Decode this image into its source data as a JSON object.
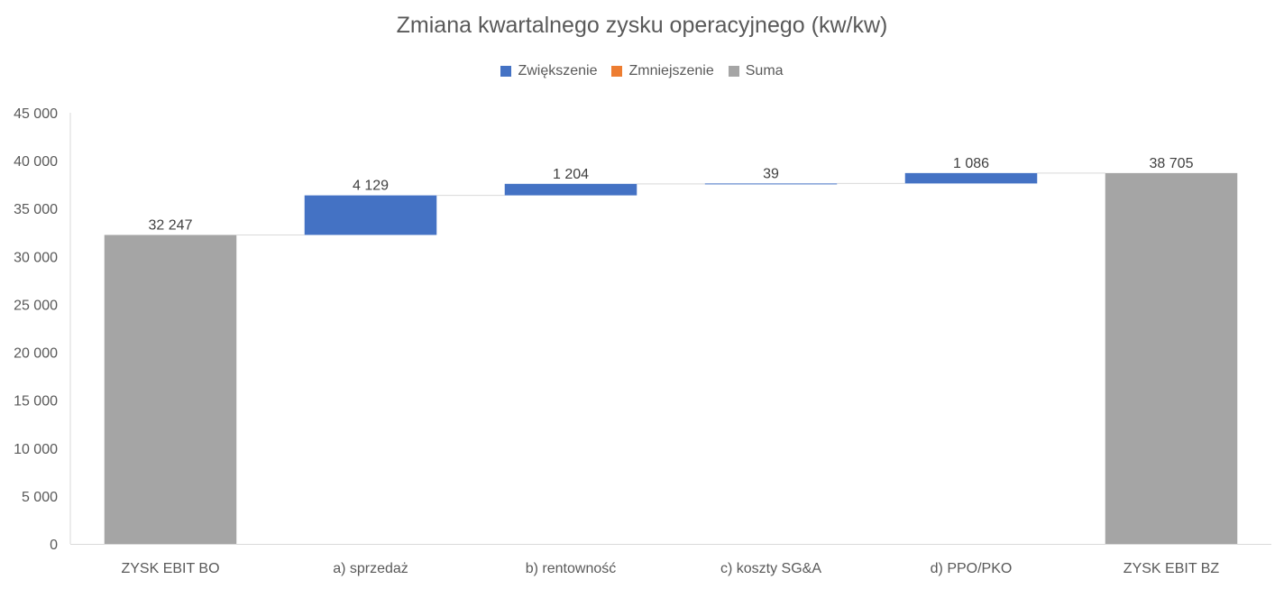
{
  "chart_data": {
    "type": "waterfall",
    "title": "Zmiana kwartalnego zysku operacyjnego (kw/kw)",
    "xlabel": "",
    "ylabel": "",
    "ylim": [
      0,
      45000
    ],
    "yticks": [
      0,
      5000,
      10000,
      15000,
      20000,
      25000,
      30000,
      35000,
      40000,
      45000
    ],
    "ytick_labels": [
      "0",
      "5 000",
      "10 000",
      "15 000",
      "20 000",
      "25 000",
      "30 000",
      "35 000",
      "40 000",
      "45 000"
    ],
    "legend": {
      "position": "top",
      "entries": [
        {
          "name": "Zwiększenie",
          "color": "#4472C4"
        },
        {
          "name": "Zmniejszenie",
          "color": "#ED7D31"
        },
        {
          "name": "Suma",
          "color": "#A5A5A5"
        }
      ]
    },
    "categories": [
      "ZYSK EBIT BO",
      "a) sprzedaż",
      "b) rentowność",
      "c) koszty SG&A",
      "d) PPO/PKO",
      "ZYSK EBIT BZ"
    ],
    "kinds": [
      "total",
      "increase",
      "increase",
      "increase",
      "increase",
      "total"
    ],
    "values": [
      32247,
      4129,
      1204,
      39,
      1086,
      38705
    ],
    "data_labels": [
      "32 247",
      "4 129",
      "1 204",
      "39",
      "1 086",
      "38 705"
    ],
    "grid": false,
    "connector_lines": true
  }
}
